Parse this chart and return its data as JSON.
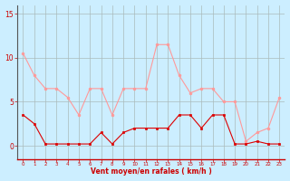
{
  "x": [
    0,
    1,
    2,
    3,
    4,
    5,
    6,
    7,
    8,
    9,
    10,
    11,
    12,
    13,
    14,
    15,
    16,
    17,
    18,
    19,
    20,
    21,
    22,
    23
  ],
  "wind_avg": [
    3.5,
    2.5,
    0.2,
    0.2,
    0.2,
    0.2,
    0.2,
    1.5,
    0.2,
    1.5,
    2.0,
    2.0,
    2.0,
    2.0,
    3.5,
    3.5,
    2.0,
    3.5,
    3.5,
    0.2,
    0.2,
    0.5,
    0.2,
    0.2
  ],
  "wind_gust": [
    10.5,
    8.0,
    6.5,
    6.5,
    5.5,
    3.5,
    6.5,
    6.5,
    3.5,
    6.5,
    6.5,
    6.5,
    11.5,
    11.5,
    8.0,
    6.0,
    6.5,
    6.5,
    5.0,
    5.0,
    0.5,
    1.5,
    2.0,
    5.5
  ],
  "color_avg": "#dd0000",
  "color_gust": "#ff9999",
  "bg_color": "#cceeff",
  "grid_color": "#aabbbb",
  "xlabel": "Vent moyen/en rafales ( km/h )",
  "xlabel_color": "#cc0000",
  "tick_color": "#cc0000",
  "yticks": [
    0,
    5,
    10,
    15
  ],
  "ylim": [
    -1.5,
    16
  ],
  "xlim": [
    -0.5,
    23.5
  ]
}
